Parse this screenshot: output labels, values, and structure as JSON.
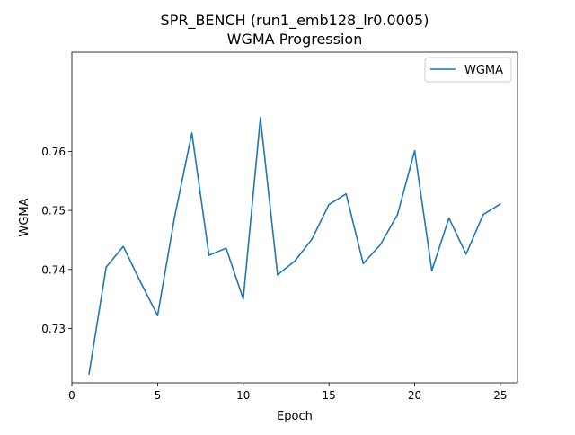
{
  "chart_data": {
    "type": "line",
    "title_line1": "SPR_BENCH (run1_emb128_lr0.0005)",
    "title_line2": "WGMA Progression",
    "xlabel": "Epoch",
    "ylabel": "WGMA",
    "xlim": [
      0,
      26
    ],
    "ylim": [
      0.7208,
      0.7768
    ],
    "xticks": [
      0,
      5,
      10,
      15,
      20,
      25
    ],
    "yticks": [
      0.73,
      0.74,
      0.75,
      0.76
    ],
    "ytick_labels": [
      "0.73",
      "0.74",
      "0.75",
      "0.76"
    ],
    "legend_position": "top-right",
    "grid": false,
    "series": [
      {
        "name": "WGMA",
        "color": "#1f77b4",
        "x": [
          1,
          2,
          3,
          4,
          5,
          6,
          7,
          8,
          9,
          10,
          11,
          12,
          13,
          14,
          15,
          16,
          17,
          18,
          19,
          20,
          21,
          22,
          23,
          24,
          25
        ],
        "values": [
          0.7223,
          0.7404,
          0.7439,
          0.7379,
          0.7322,
          0.749,
          0.7631,
          0.7424,
          0.7436,
          0.735,
          0.7657,
          0.7391,
          0.7414,
          0.7451,
          0.751,
          0.7528,
          0.741,
          0.7442,
          0.7493,
          0.7601,
          0.7398,
          0.7487,
          0.7426,
          0.7493,
          0.7511
        ]
      }
    ]
  }
}
